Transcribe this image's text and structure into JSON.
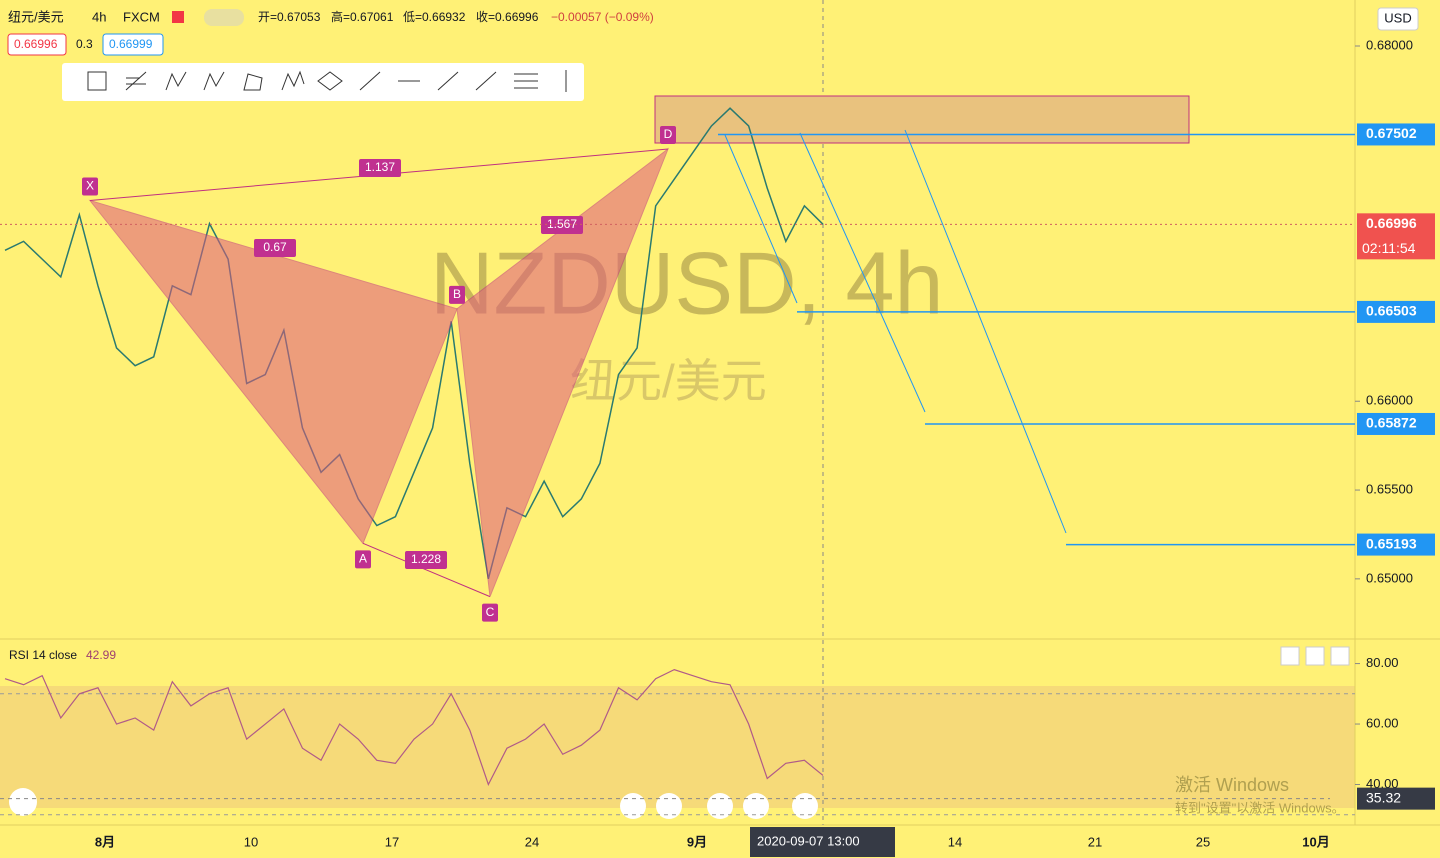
{
  "header": {
    "symbol": "纽元/美元",
    "interval": "4h",
    "source": "FXCM",
    "open": "开=0.67053",
    "high": "高=0.67061",
    "low": "低=0.66932",
    "close": "收=0.66996",
    "change": "−0.00057 (−0.09%)",
    "bid": "0.66996",
    "spread": "0.3",
    "ask": "0.66999"
  },
  "currency": "USD",
  "watermark": {
    "ticker": "NZDUSD, 4h",
    "name": "纽元/美元"
  },
  "price_axis": {
    "ylim": [
      0.64667,
      0.68259
    ],
    "ticks": [
      {
        "value": 0.68,
        "label": "0.68000"
      },
      {
        "value": 0.66,
        "label": "0.66000"
      },
      {
        "value": 0.655,
        "label": "0.65500"
      },
      {
        "value": 0.65,
        "label": "0.65000"
      }
    ]
  },
  "levels": [
    {
      "value": 0.67502,
      "label": "0.67502"
    },
    {
      "value": 0.66503,
      "label": "0.66503"
    },
    {
      "value": 0.65872,
      "label": "0.65872"
    },
    {
      "value": 0.65193,
      "label": "0.65193"
    }
  ],
  "last_price": {
    "value": 0.66996,
    "label": "0.66996",
    "countdown": "02:11:54"
  },
  "price_path": [
    0.6685,
    0.669,
    0.668,
    0.667,
    0.6705,
    0.6665,
    0.663,
    0.662,
    0.6625,
    0.6665,
    0.666,
    0.67,
    0.668,
    0.661,
    0.6615,
    0.664,
    0.6585,
    0.656,
    0.657,
    0.6545,
    0.653,
    0.6535,
    0.656,
    0.6585,
    0.6645,
    0.6565,
    0.65,
    0.654,
    0.6535,
    0.6555,
    0.6535,
    0.6545,
    0.6565,
    0.6615,
    0.663,
    0.671,
    0.6725,
    0.674,
    0.6755,
    0.6765,
    0.6755,
    0.672,
    0.669,
    0.671,
    0.66996
  ],
  "pattern": {
    "points": [
      {
        "label": "X",
        "value": 0.6713
      },
      {
        "label": "A",
        "value": 0.652
      },
      {
        "label": "B",
        "value": 0.6652
      },
      {
        "label": "C",
        "value": 0.649
      },
      {
        "label": "D",
        "value": 0.6742
      }
    ],
    "ratios": {
      "xb": 0.67,
      "xd": 1.137,
      "ac": 1.228,
      "bd": 1.567
    }
  },
  "rsi": {
    "title": "RSI 14 close",
    "current": "42.99",
    "ylim": [
      26.6,
      87.8
    ],
    "ticks": [
      {
        "value": 80,
        "label": "80.00"
      },
      {
        "value": 60,
        "label": "60.00"
      },
      {
        "value": 40,
        "label": "40.00"
      }
    ],
    "band": [
      30,
      70
    ],
    "cursor": {
      "value": 35.32,
      "label": "35.32"
    },
    "values": [
      75,
      73,
      76,
      62,
      70,
      72,
      60,
      62,
      58,
      74,
      66,
      70,
      72,
      55,
      60,
      65,
      52,
      48,
      60,
      55,
      48,
      47,
      55,
      60,
      70,
      58,
      40,
      52,
      55,
      60,
      50,
      53,
      58,
      72,
      68,
      75,
      78,
      76,
      74,
      73,
      60,
      42,
      47,
      48,
      42.99
    ]
  },
  "time_axis": [
    "8月",
    "10",
    "17",
    "24",
    "9月",
    "14",
    "21",
    "25",
    "10月"
  ],
  "cursor_time": "2020-09-07   13:00",
  "windows": {
    "title": "激活 Windows",
    "hint": "转到\"设置\"以激活 Windows。"
  }
}
